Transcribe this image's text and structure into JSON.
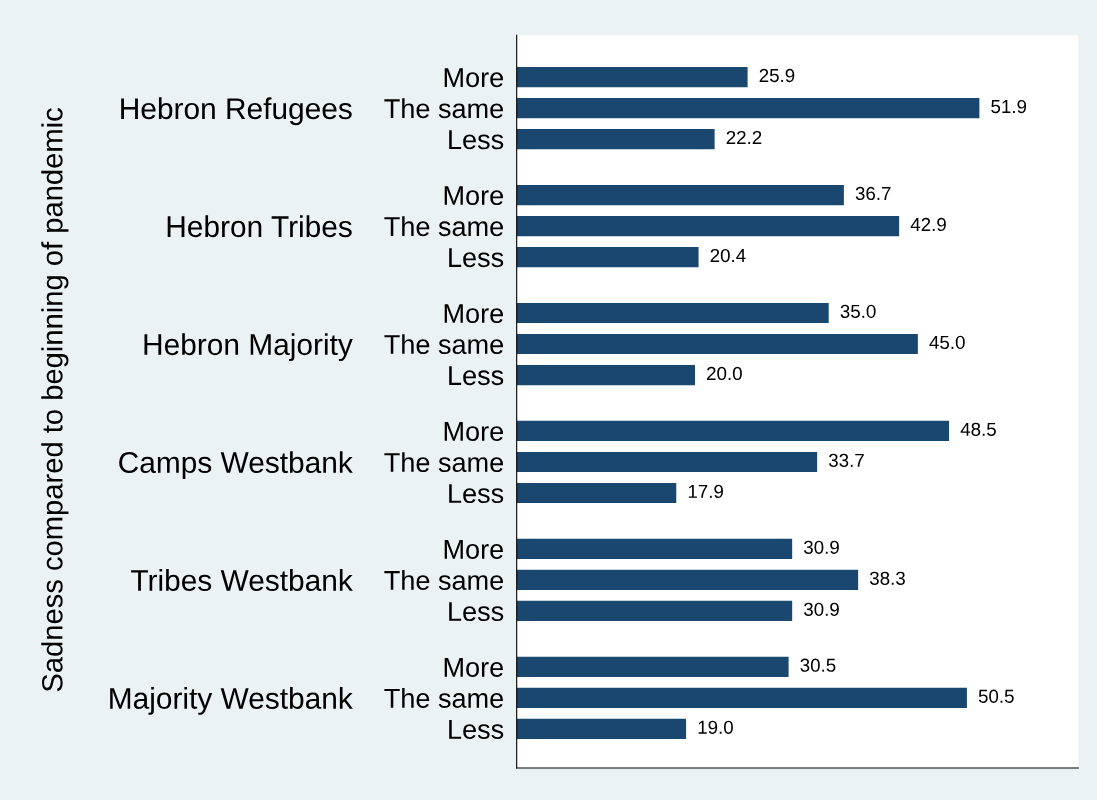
{
  "chart_data": {
    "type": "bar",
    "orientation": "horizontal",
    "categories": [
      "More",
      "The same",
      "Less",
      "More",
      "The same",
      "Less",
      "More",
      "The same",
      "Less",
      "More",
      "The same",
      "Less",
      "More",
      "The same",
      "Less",
      "More",
      "The same",
      "Less"
    ],
    "values": [
      25.9,
      51.9,
      22.2,
      36.7,
      42.9,
      20.4,
      35.0,
      45.0,
      20.0,
      48.5,
      33.7,
      17.9,
      30.9,
      38.3,
      30.9,
      30.5,
      50.5,
      19.0
    ],
    "value_labels": [
      "25.9",
      "51.9",
      "22.2",
      "36.7",
      "42.9",
      "20.4",
      "35.0",
      "45.0",
      "20.0",
      "48.5",
      "33.7",
      "17.9",
      "30.9",
      "38.3",
      "30.9",
      "30.5",
      "50.5",
      "19.0"
    ],
    "color": "#1a476f",
    "annotations": [
      "Sadness compared to beginning of pandemic",
      "Hebron Refugees",
      "Hebron Tribes",
      "Hebron Majority",
      "Camps Westbank",
      "Tribes Westbank",
      "Majority Westbank"
    ],
    "xlim": [
      0,
      63
    ],
    "tick_labels": "y",
    "grid": false,
    "legend": false
  }
}
